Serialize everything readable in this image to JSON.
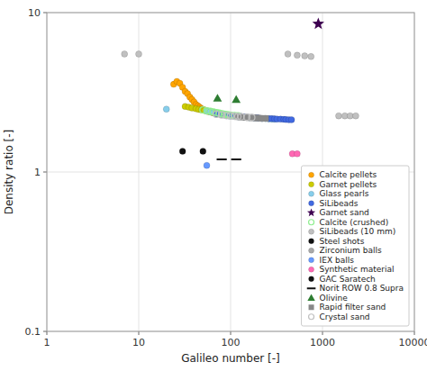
{
  "chart_data": {
    "type": "scatter",
    "xlabel": "Galileo number [-]",
    "ylabel": "Density ratio [-]",
    "log": true,
    "grid": true,
    "legend": "lower right",
    "xlim": [
      1,
      10000
    ],
    "ylim": [
      0.1,
      10
    ],
    "xticks": [
      1,
      10,
      100,
      1000,
      10000
    ],
    "yticks": [
      0.1,
      1,
      10
    ],
    "series": [
      {
        "name": "Calcite pellets",
        "color": "#FFA500",
        "marker": "circle",
        "x": [
          24,
          26,
          28,
          30,
          32,
          34,
          36,
          38,
          40,
          42,
          44,
          46,
          48,
          50,
          52,
          55,
          58,
          62,
          65,
          68
        ],
        "values": [
          3.55,
          3.7,
          3.6,
          3.4,
          3.2,
          3.1,
          2.95,
          2.85,
          2.75,
          2.65,
          2.6,
          2.55,
          2.5,
          2.47,
          2.45,
          2.42,
          2.4,
          2.38,
          2.36,
          2.35
        ]
      },
      {
        "name": "Garnet pellets",
        "color": "#CCCC00",
        "marker": "circle",
        "x": [
          32,
          35,
          38,
          42,
          45,
          48,
          52,
          55,
          58,
          62,
          65,
          68,
          72,
          76,
          80
        ],
        "values": [
          2.58,
          2.55,
          2.52,
          2.49,
          2.47,
          2.45,
          2.43,
          2.41,
          2.39,
          2.37,
          2.35,
          2.34,
          2.32,
          2.31,
          2.3
        ]
      },
      {
        "name": "Glass pearls",
        "color": "#87CEEB",
        "marker": "circle",
        "x": [
          20,
          55,
          60,
          65,
          70,
          75,
          80,
          85,
          90,
          95,
          100,
          110,
          120,
          130,
          140,
          150,
          160,
          180,
          200,
          220,
          240,
          260,
          280,
          300
        ],
        "values": [
          2.48,
          2.41,
          2.38,
          2.36,
          2.34,
          2.32,
          2.3,
          2.28,
          2.26,
          2.25,
          2.24,
          2.23,
          2.22,
          2.21,
          2.2,
          2.2,
          2.19,
          2.18,
          2.17,
          2.16,
          2.16,
          2.155,
          2.15,
          2.145
        ]
      },
      {
        "name": "SiLibeads",
        "color": "#4169E1",
        "marker": "circle",
        "x": [
          70,
          80,
          90,
          100,
          110,
          120,
          130,
          140,
          150,
          160,
          170,
          180,
          190,
          200,
          220,
          240,
          260,
          280,
          300,
          320,
          350,
          380,
          400,
          430,
          460
        ],
        "values": [
          2.32,
          2.3,
          2.28,
          2.26,
          2.25,
          2.24,
          2.23,
          2.22,
          2.21,
          2.2,
          2.2,
          2.19,
          2.19,
          2.18,
          2.17,
          2.17,
          2.16,
          2.16,
          2.155,
          2.15,
          2.145,
          2.14,
          2.135,
          2.13,
          2.13
        ]
      },
      {
        "name": "Garnet sand",
        "color": "#3D0050",
        "marker": "star",
        "x": [
          900
        ],
        "values": [
          8.5
        ]
      },
      {
        "name": "Calcite (crushed)",
        "color": "#90EE90",
        "marker": "circle-open",
        "x": [
          50,
          55,
          60,
          65,
          70,
          75,
          80,
          85,
          90,
          95,
          100,
          110,
          120
        ],
        "values": [
          2.45,
          2.42,
          2.4,
          2.38,
          2.36,
          2.34,
          2.32,
          2.3,
          2.29,
          2.28,
          2.27,
          2.26,
          2.25
        ]
      },
      {
        "name": "SiLibeads (10 mm)",
        "color": "#C0C0C0",
        "marker": "circle",
        "x": [
          7,
          10,
          420,
          530,
          640,
          750,
          1500,
          1750,
          2000,
          2300
        ],
        "values": [
          5.5,
          5.5,
          5.5,
          5.4,
          5.35,
          5.3,
          2.25,
          2.25,
          2.25,
          2.25
        ]
      },
      {
        "name": "Steel shots",
        "color": "#111111",
        "marker": "circle",
        "x": [
          30,
          50
        ],
        "values": [
          1.35,
          1.35
        ]
      },
      {
        "name": "Zirconium balls",
        "color": "#A9A9A9",
        "marker": "circle",
        "x": [],
        "values": []
      },
      {
        "name": "IEX balls",
        "color": "#6699FF",
        "marker": "circle",
        "x": [
          55
        ],
        "values": [
          1.1
        ]
      },
      {
        "name": "Synthetic material",
        "color": "#FF69B4",
        "marker": "circle",
        "x": [
          470,
          530
        ],
        "values": [
          1.3,
          1.3
        ]
      },
      {
        "name": "GAC Saratech",
        "color": "#111111",
        "marker": "circle",
        "x": [],
        "values": []
      },
      {
        "name": "Norit ROW 0.8 Supra",
        "color": "#111111",
        "marker": "hline",
        "x": [
          80,
          115
        ],
        "values": [
          1.2,
          1.2
        ]
      },
      {
        "name": "Olivine",
        "color": "#2E7D32",
        "marker": "triangle",
        "x": [
          72,
          115
        ],
        "values": [
          2.9,
          2.85
        ]
      },
      {
        "name": "Rapid filter sand",
        "color": "#888888",
        "marker": "square",
        "x": [
          120,
          130,
          140,
          150,
          160,
          175,
          190,
          200,
          220,
          240
        ],
        "values": [
          2.22,
          2.21,
          2.2,
          2.2,
          2.19,
          2.19,
          2.18,
          2.18,
          2.17,
          2.17
        ]
      },
      {
        "name": "Crystal sand",
        "color": "#C0C0C0",
        "marker": "circle-open",
        "x": [
          70,
          80,
          90,
          100,
          110,
          120,
          130,
          150,
          170
        ],
        "values": [
          2.3,
          2.28,
          2.26,
          2.25,
          2.24,
          2.23,
          2.22,
          2.21,
          2.2
        ]
      }
    ]
  }
}
